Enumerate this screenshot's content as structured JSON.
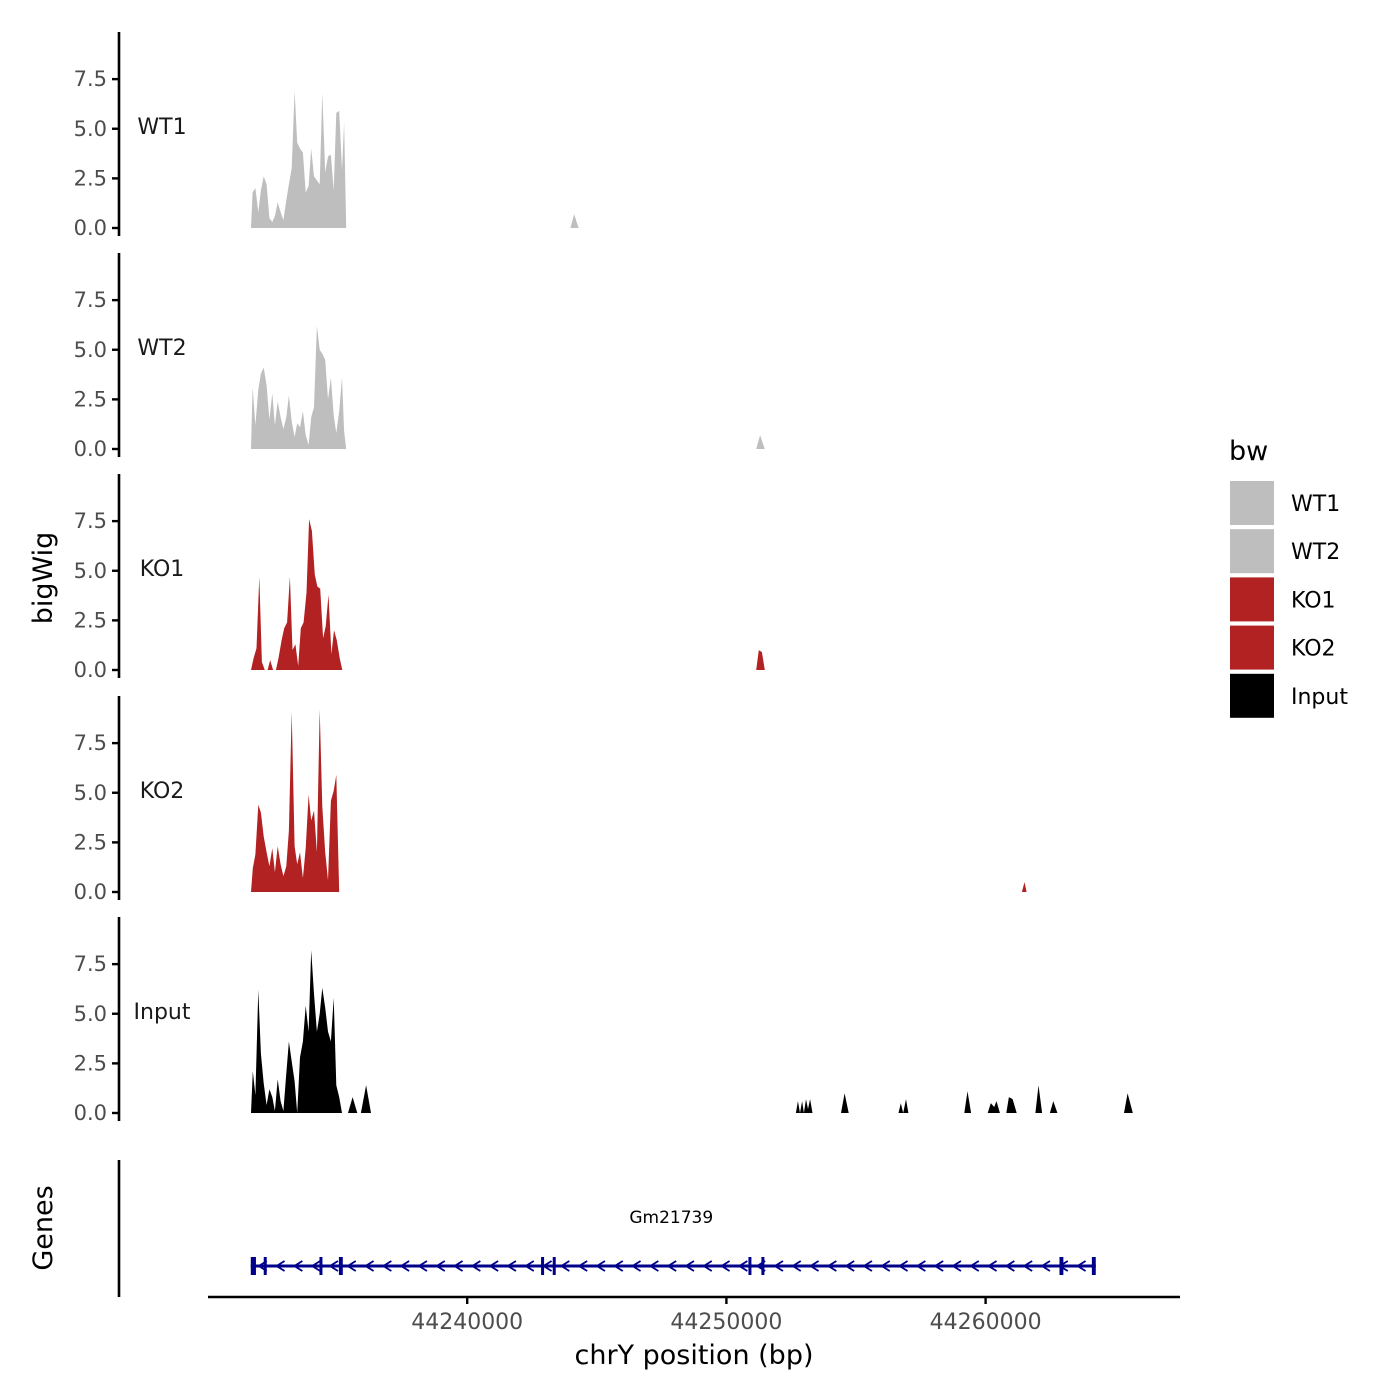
{
  "chart_data": {
    "type": "area",
    "chromosome": "chrY",
    "xlabel": "chrY position (bp)",
    "ylabel": "bigWig",
    "genes_label": "Genes",
    "xlim": [
      44230000,
      44267500
    ],
    "x_ticks": [
      44240000,
      44250000,
      44260000
    ],
    "x_tick_labels": [
      "44240000",
      "44250000",
      "44260000"
    ],
    "ylim": [
      0,
      10
    ],
    "y_ticks": [
      0,
      2.5,
      5,
      7.5
    ],
    "y_tick_labels": [
      "0.0",
      "2.5",
      "5.0",
      "7.5"
    ],
    "legend": {
      "title": "bw",
      "placement": "right",
      "entries": [
        {
          "name": "WT1",
          "color": "#bebebe"
        },
        {
          "name": "WT2",
          "color": "#bebebe"
        },
        {
          "name": "KO1",
          "color": "#b22222"
        },
        {
          "name": "KO2",
          "color": "#b22222"
        },
        {
          "name": "Input",
          "color": "#000000"
        }
      ]
    },
    "tracks": [
      {
        "name": "WT1",
        "color": "#bebebe",
        "x": [
          44231660,
          44231720,
          44231830,
          44231940,
          44232040,
          44232150,
          44232260,
          44232370,
          44232480,
          44232580,
          44232690,
          44232800,
          44232910,
          44233020,
          44233120,
          44233230,
          44233340,
          44233440,
          44233550,
          44233660,
          44233770,
          44233880,
          44233980,
          44234090,
          44234200,
          44234310,
          44234410,
          44234520,
          44234630,
          44234740,
          44234850,
          44234950,
          44235060,
          44235170,
          44235250,
          44235330,
          44243980,
          44244130,
          44244220,
          44244300
        ],
        "values": [
          0,
          1.8,
          2.0,
          0.8,
          1.9,
          2.6,
          2.2,
          0.5,
          0.3,
          0.6,
          1.3,
          0.8,
          0.4,
          1.4,
          2.2,
          3.0,
          6.9,
          4.3,
          4.0,
          3.8,
          1.8,
          2.1,
          4.0,
          2.6,
          2.4,
          2.2,
          6.8,
          2.8,
          3.6,
          3.7,
          1.9,
          5.8,
          5.9,
          2.9,
          5.3,
          0,
          0,
          0.7,
          0.3,
          0
        ]
      },
      {
        "name": "WT2",
        "color": "#bebebe",
        "x": [
          44231660,
          44231720,
          44231830,
          44231940,
          44232040,
          44232150,
          44232260,
          44232370,
          44232480,
          44232580,
          44232690,
          44232800,
          44232910,
          44233020,
          44233120,
          44233230,
          44233340,
          44233440,
          44233550,
          44233660,
          44233770,
          44233880,
          44233980,
          44234090,
          44234200,
          44234310,
          44234410,
          44234520,
          44234630,
          44234740,
          44234850,
          44234950,
          44235060,
          44235170,
          44235250,
          44235330,
          44251150,
          44251300,
          44251400,
          44251480
        ],
        "values": [
          0,
          3.1,
          1.2,
          3.0,
          3.8,
          4.1,
          3.2,
          1.5,
          2.8,
          1.2,
          2.4,
          1.6,
          1.0,
          1.6,
          2.7,
          1.4,
          0.6,
          1.3,
          1.1,
          1.9,
          0.7,
          0.2,
          1.6,
          2.1,
          6.2,
          5.0,
          4.8,
          4.5,
          2.5,
          3.6,
          1.7,
          0.8,
          1.9,
          3.6,
          0.9,
          0,
          0,
          0.7,
          0.3,
          0
        ]
      },
      {
        "name": "KO1",
        "color": "#b22222",
        "x": [
          44231660,
          44231760,
          44231870,
          44231980,
          44232080,
          44232190,
          44232300,
          44232400,
          44232510,
          44232620,
          44232720,
          44232840,
          44232940,
          44233050,
          44233160,
          44233260,
          44233370,
          44233480,
          44233580,
          44233690,
          44233800,
          44233900,
          44234010,
          44234120,
          44234220,
          44234330,
          44234440,
          44234540,
          44234650,
          44234760,
          44234860,
          44234970,
          44235080,
          44235180,
          44235280,
          44235400,
          44251150,
          44251250,
          44251370,
          44251480
        ],
        "values": [
          0,
          0.6,
          1.1,
          4.7,
          0.4,
          0,
          0,
          0.5,
          0,
          0,
          0.6,
          1.5,
          2.1,
          2.4,
          4.7,
          1.0,
          1.3,
          0.2,
          2.1,
          2.4,
          3.9,
          7.6,
          7.0,
          4.8,
          4.2,
          4.1,
          1.6,
          2.2,
          3.8,
          0.8,
          2.0,
          1.5,
          0.6,
          0,
          0,
          0,
          0,
          1.0,
          0.9,
          0
        ]
      },
      {
        "name": "KO2",
        "color": "#b22222",
        "x": [
          44231660,
          44231730,
          44231830,
          44231940,
          44232040,
          44232150,
          44232260,
          44232370,
          44232480,
          44232580,
          44232690,
          44232800,
          44232910,
          44233020,
          44233120,
          44233230,
          44233340,
          44233440,
          44233550,
          44233660,
          44233770,
          44233880,
          44233980,
          44234090,
          44234200,
          44234310,
          44234410,
          44234520,
          44234630,
          44234740,
          44234850,
          44234950,
          44235060,
          44235170,
          44235250,
          44235330,
          44261400,
          44261500,
          44261580
        ],
        "values": [
          0,
          1.2,
          1.9,
          4.4,
          4.0,
          2.8,
          2.0,
          1.3,
          2.2,
          1.0,
          2.3,
          1.4,
          0.8,
          1.3,
          3.1,
          9.1,
          2.3,
          1.4,
          2.0,
          0.7,
          2.2,
          4.9,
          3.6,
          4.1,
          2.0,
          9.2,
          4.3,
          2.0,
          0.6,
          4.6,
          5.1,
          5.9,
          0,
          0,
          0,
          0,
          0,
          0.5,
          0
        ]
      },
      {
        "name": "Input",
        "color": "#000000",
        "x": [
          44231660,
          44231730,
          44231830,
          44231940,
          44232040,
          44232150,
          44232260,
          44232370,
          44232480,
          44232580,
          44232690,
          44232800,
          44232910,
          44233020,
          44233120,
          44233230,
          44233340,
          44233440,
          44233550,
          44233660,
          44233770,
          44233880,
          44233980,
          44234090,
          44234200,
          44234310,
          44234410,
          44234520,
          44234630,
          44234740,
          44234850,
          44234950,
          44235060,
          44235170,
          44235280,
          44235400,
          44235580,
          44235760,
          44235900,
          44236100,
          44236290,
          44236480,
          44252680,
          44252760,
          44252840,
          44252920,
          44252990,
          44253070,
          44253150,
          44253230,
          44253320,
          44253390,
          44253480,
          44253560,
          44253640,
          44254420,
          44254560,
          44254720,
          44256640,
          44256730,
          44256820,
          44256930,
          44257020,
          44257130,
          44259180,
          44259300,
          44259440,
          44260080,
          44260200,
          44260330,
          44260420,
          44260550,
          44260800,
          44260900,
          44261040,
          44261200,
          44261920,
          44262040,
          44262180,
          44262480,
          44262610,
          44262770,
          44265340,
          44265480,
          44265680
        ],
        "values": [
          0,
          2.1,
          0.9,
          6.2,
          3.0,
          1.5,
          0.4,
          1.2,
          0.8,
          0.1,
          1.7,
          0.6,
          0.1,
          2.0,
          3.6,
          2.6,
          1.6,
          0,
          2.8,
          3.6,
          5.4,
          4.1,
          8.2,
          6.0,
          4.1,
          5.0,
          6.3,
          5.3,
          4.1,
          3.6,
          5.8,
          1.4,
          0.8,
          0,
          0,
          0,
          0.8,
          0,
          0,
          1.4,
          0,
          0,
          0,
          0.6,
          0,
          0.6,
          0,
          0.7,
          0.2,
          0.7,
          0,
          0,
          0,
          0,
          0,
          0,
          1.0,
          0,
          0,
          0.5,
          0,
          0.7,
          0,
          0,
          0,
          1.1,
          0,
          0,
          0.5,
          0.3,
          0.6,
          0,
          0,
          0.8,
          0.7,
          0,
          0,
          1.4,
          0,
          0,
          0.6,
          0,
          0,
          1.0,
          0
        ]
      }
    ],
    "genes": [
      {
        "name": "Gm21739",
        "start": 44231650,
        "end": 44264250,
        "strand": "-",
        "color": "#00008b",
        "exons": [
          {
            "start": 44231650,
            "end": 44231850
          },
          {
            "start": 44232150,
            "end": 44232250
          },
          {
            "start": 44234300,
            "end": 44234400
          },
          {
            "start": 44235050,
            "end": 44235200
          },
          {
            "start": 44242850,
            "end": 44242950
          },
          {
            "start": 44243300,
            "end": 44243400
          },
          {
            "start": 44250850,
            "end": 44250950
          },
          {
            "start": 44251350,
            "end": 44251450
          },
          {
            "start": 44262850,
            "end": 44263000
          },
          {
            "start": 44264100,
            "end": 44264250
          }
        ]
      }
    ]
  }
}
